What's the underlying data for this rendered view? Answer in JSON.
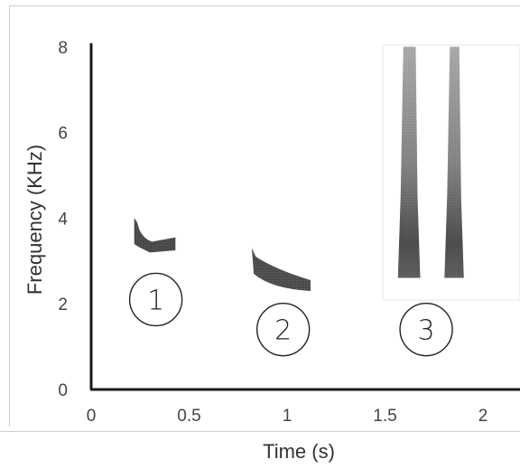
{
  "chart_data": {
    "type": "spectrogram",
    "xlabel": "Time (s)",
    "ylabel": "Frequency (KHz)",
    "xlim": [
      0,
      2.2
    ],
    "ylim": [
      0,
      8
    ],
    "x_ticks": [
      "0",
      "0.5",
      "1",
      "1.5",
      "2"
    ],
    "x_tick_values": [
      0,
      0.5,
      1,
      1.5,
      2
    ],
    "y_ticks": [
      "0",
      "2",
      "4",
      "6",
      "8"
    ],
    "y_tick_values": [
      0,
      2,
      4,
      6,
      8
    ],
    "grid": false,
    "calls": [
      {
        "label": "1",
        "t_start": 0.22,
        "t_end": 0.43,
        "f_start": 4.0,
        "f_min": 3.4,
        "f_end": 3.5,
        "label_pos": [
          0.33,
          2.1
        ]
      },
      {
        "label": "2",
        "t_start": 0.82,
        "t_end": 1.12,
        "f_start": 3.1,
        "f_end": 2.45,
        "label_pos": [
          0.98,
          1.4
        ]
      },
      {
        "label": "3",
        "t_start": 1.52,
        "t_end": 1.92,
        "f_start": 2.9,
        "f_end": 8.0,
        "label_pos": [
          1.71,
          1.4
        ]
      }
    ],
    "colors": {
      "axis": "#1a1a1a",
      "signal": "#2b2b2b",
      "text": "#444444"
    }
  }
}
